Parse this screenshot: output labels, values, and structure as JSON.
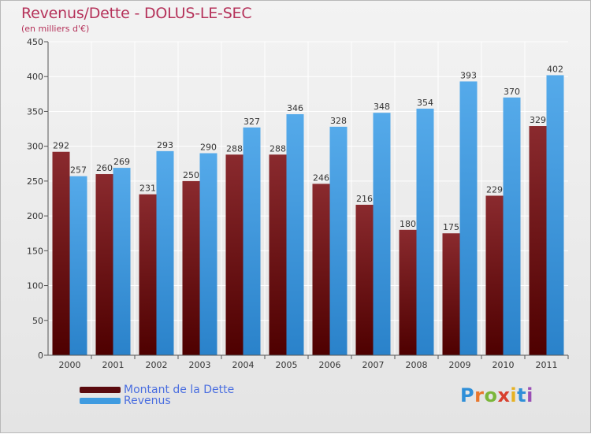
{
  "colors": {
    "dette": "#7a1a1e",
    "revenus": "#3f9be0",
    "title": "#b5325a",
    "legend_text": "#4a6ee0"
  },
  "logo": {
    "text": "Proxiti"
  },
  "chart_data": {
    "type": "bar",
    "title": "Revenus/Dette - DOLUS-LE-SEC",
    "subtitle": "(en milliers d'€)",
    "xlabel": "",
    "ylabel": "",
    "ylim": [
      0,
      450
    ],
    "yticks": [
      0,
      50,
      100,
      150,
      200,
      250,
      300,
      350,
      400,
      450
    ],
    "grid": true,
    "legend_position": "bottom-left",
    "categories": [
      "2000",
      "2001",
      "2002",
      "2003",
      "2004",
      "2005",
      "2006",
      "2007",
      "2008",
      "2009",
      "2010",
      "2011"
    ],
    "series": [
      {
        "name": "Montant de la Dette",
        "values": [
          292,
          260,
          231,
          250,
          288,
          288,
          246,
          216,
          180,
          175,
          229,
          329
        ]
      },
      {
        "name": "Revenus",
        "values": [
          257,
          269,
          293,
          290,
          327,
          346,
          328,
          348,
          354,
          393,
          370,
          402
        ]
      }
    ]
  }
}
